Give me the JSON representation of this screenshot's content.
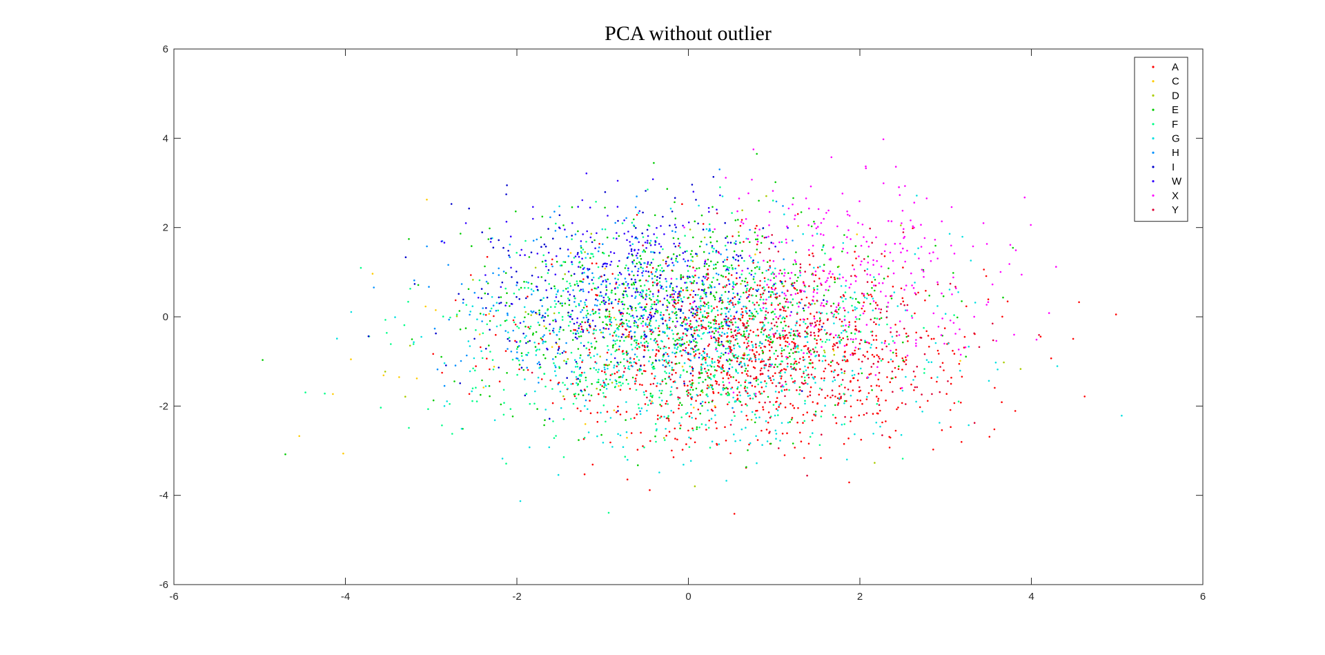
{
  "chart_data": {
    "type": "scatter",
    "title": "PCA without outlier",
    "xlabel": "",
    "ylabel": "",
    "xlim": [
      -6,
      6
    ],
    "ylim": [
      -6,
      6
    ],
    "x_ticks": [
      -6,
      -4,
      -2,
      0,
      2,
      4,
      6
    ],
    "y_ticks": [
      -6,
      -4,
      -2,
      0,
      2,
      4,
      6
    ],
    "grid": false,
    "legend": "top-right",
    "series": [
      {
        "name": "A",
        "color": "#ff0000",
        "center": [
          0.8,
          -0.8
        ],
        "spread": [
          1.3,
          1.1
        ],
        "count": 900
      },
      {
        "name": "C",
        "color": "#ffcc00",
        "center": [
          -1.0,
          -0.8
        ],
        "spread": [
          1.6,
          1.4
        ],
        "count": 40
      },
      {
        "name": "D",
        "color": "#aacc00",
        "center": [
          -0.5,
          -0.3
        ],
        "spread": [
          1.5,
          1.3
        ],
        "count": 60
      },
      {
        "name": "E",
        "color": "#00cc00",
        "center": [
          0.0,
          0.0
        ],
        "spread": [
          1.2,
          1.1
        ],
        "count": 700
      },
      {
        "name": "F",
        "color": "#00ff88",
        "center": [
          -0.3,
          -0.5
        ],
        "spread": [
          1.3,
          1.2
        ],
        "count": 600
      },
      {
        "name": "G",
        "color": "#00e0e0",
        "center": [
          0.2,
          -0.6
        ],
        "spread": [
          1.3,
          1.2
        ],
        "count": 600
      },
      {
        "name": "H",
        "color": "#0090ff",
        "center": [
          -0.9,
          0.3
        ],
        "spread": [
          1.0,
          1.0
        ],
        "count": 250
      },
      {
        "name": "I",
        "color": "#0000cc",
        "center": [
          -0.8,
          0.5
        ],
        "spread": [
          1.0,
          1.0
        ],
        "count": 250
      },
      {
        "name": "W",
        "color": "#3300ff",
        "center": [
          -0.6,
          1.0
        ],
        "spread": [
          0.8,
          0.8
        ],
        "count": 250
      },
      {
        "name": "X",
        "color": "#ff00ff",
        "center": [
          1.9,
          1.0
        ],
        "spread": [
          0.9,
          1.0
        ],
        "count": 320
      },
      {
        "name": "Y",
        "color": "#dd0033",
        "center": [
          1.0,
          -0.5
        ],
        "spread": [
          1.0,
          0.9
        ],
        "count": 400
      }
    ]
  }
}
